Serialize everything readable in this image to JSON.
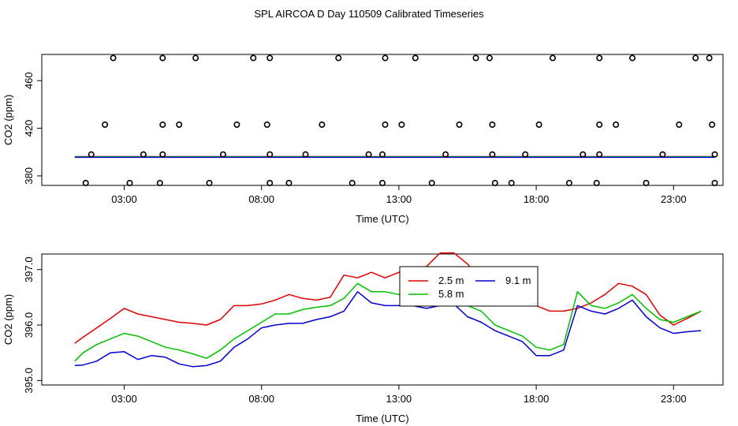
{
  "figure": {
    "title": "SPL AIRCOA D  Day 110509  Calibrated Timeseries"
  },
  "colors": {
    "red": "#e00000",
    "green": "#00c000",
    "blue": "#0000d0",
    "cyan": "#00b0b0",
    "magenta": "#c000c0",
    "axis": "#000000"
  },
  "chart_data": [
    {
      "type": "scatter+line",
      "panel": "top",
      "title": "",
      "xlabel": "Time (UTC)",
      "ylabel": "CO2 (ppm)",
      "xlim": [
        0,
        24.8
      ],
      "ylim": [
        372,
        482
      ],
      "x_ticks": [
        3,
        8,
        13,
        18,
        23
      ],
      "x_tick_labels": [
        "03:00",
        "08:00",
        "13:00",
        "18:00",
        "23:00"
      ],
      "y_ticks": [
        380,
        420,
        460
      ],
      "y_tick_labels": [
        "380",
        "420",
        "460"
      ],
      "calibration_points": [
        [
          1.6,
          374
        ],
        [
          1.8,
          398
        ],
        [
          2.3,
          423
        ],
        [
          2.6,
          479
        ],
        [
          3.2,
          374
        ],
        [
          3.7,
          398
        ],
        [
          4.3,
          374
        ],
        [
          4.4,
          398
        ],
        [
          4.4,
          423
        ],
        [
          4.4,
          479
        ],
        [
          5.0,
          423
        ],
        [
          5.6,
          479
        ],
        [
          6.1,
          374
        ],
        [
          6.6,
          398
        ],
        [
          7.1,
          423
        ],
        [
          7.7,
          479
        ],
        [
          8.2,
          423
        ],
        [
          8.3,
          479
        ],
        [
          8.3,
          398
        ],
        [
          8.3,
          374
        ],
        [
          9.0,
          374
        ],
        [
          9.6,
          398
        ],
        [
          10.2,
          423
        ],
        [
          10.8,
          479
        ],
        [
          11.3,
          374
        ],
        [
          11.9,
          398
        ],
        [
          12.4,
          374
        ],
        [
          12.4,
          398
        ],
        [
          12.5,
          423
        ],
        [
          12.5,
          479
        ],
        [
          13.1,
          423
        ],
        [
          13.6,
          479
        ],
        [
          14.2,
          374
        ],
        [
          14.7,
          398
        ],
        [
          15.2,
          423
        ],
        [
          15.8,
          479
        ],
        [
          16.3,
          479
        ],
        [
          16.4,
          423
        ],
        [
          16.4,
          398
        ],
        [
          16.5,
          374
        ],
        [
          17.1,
          374
        ],
        [
          17.6,
          398
        ],
        [
          18.1,
          423
        ],
        [
          18.6,
          479
        ],
        [
          19.2,
          374
        ],
        [
          19.7,
          398
        ],
        [
          20.2,
          374
        ],
        [
          20.3,
          398
        ],
        [
          20.3,
          423
        ],
        [
          20.3,
          479
        ],
        [
          20.9,
          423
        ],
        [
          21.5,
          479
        ],
        [
          22.0,
          374
        ],
        [
          22.6,
          398
        ],
        [
          23.2,
          423
        ],
        [
          23.8,
          479
        ],
        [
          24.3,
          479
        ],
        [
          24.4,
          423
        ],
        [
          24.5,
          398
        ],
        [
          24.5,
          374
        ]
      ],
      "series": [
        {
          "name": "2.5 m",
          "color": "#e00000",
          "x": [
            1.2,
            24.5
          ],
          "y": [
            396.2,
            396.2
          ]
        },
        {
          "name": "5.8 m",
          "color": "#00c000",
          "x": [
            1.2,
            24.5
          ],
          "y": [
            396.0,
            396.0
          ]
        },
        {
          "name": "9.1 m",
          "color": "#0000d0",
          "x": [
            1.2,
            24.5
          ],
          "y": [
            395.6,
            395.6
          ]
        }
      ]
    },
    {
      "type": "line",
      "panel": "bottom",
      "title": "",
      "xlabel": "Time (UTC)",
      "ylabel": "CO2 (ppm)",
      "xlim": [
        0,
        24.8
      ],
      "ylim": [
        394.92,
        397.28
      ],
      "x_ticks": [
        3,
        8,
        13,
        18,
        23
      ],
      "x_tick_labels": [
        "03:00",
        "08:00",
        "13:00",
        "18:00",
        "23:00"
      ],
      "y_ticks": [
        395.0,
        396.0,
        397.0
      ],
      "y_tick_labels": [
        "395.0",
        "396.0",
        "397.0"
      ],
      "legend": {
        "position": "top-center",
        "entries": [
          {
            "label": "2.5 m",
            "color": "#e00000"
          },
          {
            "label": "9.1 m",
            "color": "#0000d0"
          },
          {
            "label": "5.8 m",
            "color": "#00c000"
          }
        ]
      },
      "series": [
        {
          "name": "2.5 m",
          "color": "#e00000",
          "x": [
            1.2,
            1.5,
            2.0,
            2.5,
            3.0,
            3.5,
            4.0,
            4.5,
            5.0,
            5.5,
            6.0,
            6.5,
            7.0,
            7.5,
            8.0,
            8.5,
            9.0,
            9.5,
            10.0,
            10.5,
            11.0,
            11.5,
            12.0,
            12.5,
            13.0,
            13.5,
            14.0,
            14.5,
            15.0,
            15.5,
            16.0,
            16.5,
            17.0,
            17.5,
            18.0,
            18.5,
            19.0,
            19.5,
            20.0,
            20.5,
            21.0,
            21.5,
            22.0,
            22.5,
            23.0,
            23.5,
            24.0
          ],
          "y": [
            395.67,
            395.78,
            395.95,
            396.12,
            396.3,
            396.2,
            396.15,
            396.1,
            396.05,
            396.03,
            396.0,
            396.1,
            396.35,
            396.35,
            396.38,
            396.45,
            396.55,
            396.48,
            396.45,
            396.5,
            396.9,
            396.85,
            396.95,
            396.85,
            396.95,
            397.0,
            397.05,
            397.3,
            397.3,
            397.1,
            396.8,
            396.55,
            396.5,
            396.5,
            396.35,
            396.25,
            396.25,
            396.3,
            396.4,
            396.55,
            396.75,
            396.7,
            396.55,
            396.18,
            396.0,
            396.12,
            396.25
          ]
        },
        {
          "name": "5.8 m",
          "color": "#00c000",
          "x": [
            1.2,
            1.5,
            2.0,
            2.5,
            3.0,
            3.5,
            4.0,
            4.5,
            5.0,
            5.5,
            6.0,
            6.5,
            7.0,
            7.5,
            8.0,
            8.5,
            9.0,
            9.5,
            10.0,
            10.5,
            11.0,
            11.5,
            12.0,
            12.5,
            13.0,
            13.5,
            14.0,
            14.5,
            15.0,
            15.5,
            16.0,
            16.5,
            17.0,
            17.5,
            18.0,
            18.5,
            19.0,
            19.5,
            20.0,
            20.5,
            21.0,
            21.5,
            22.0,
            22.5,
            23.0,
            23.5,
            24.0
          ],
          "y": [
            395.35,
            395.5,
            395.65,
            395.75,
            395.85,
            395.8,
            395.7,
            395.6,
            395.55,
            395.48,
            395.4,
            395.55,
            395.75,
            395.9,
            396.05,
            396.2,
            396.2,
            396.28,
            396.32,
            396.35,
            396.48,
            396.75,
            396.6,
            396.6,
            396.55,
            396.45,
            396.45,
            396.55,
            396.6,
            396.35,
            396.25,
            396.0,
            395.9,
            395.8,
            395.6,
            395.55,
            395.65,
            396.6,
            396.35,
            396.3,
            396.4,
            396.55,
            396.3,
            396.1,
            396.05,
            396.15,
            396.25
          ]
        },
        {
          "name": "9.1 m",
          "color": "#0000d0",
          "x": [
            1.2,
            1.5,
            2.0,
            2.5,
            3.0,
            3.5,
            4.0,
            4.5,
            5.0,
            5.5,
            6.0,
            6.5,
            7.0,
            7.5,
            8.0,
            8.5,
            9.0,
            9.5,
            10.0,
            10.5,
            11.0,
            11.5,
            12.0,
            12.5,
            13.0,
            13.5,
            14.0,
            14.5,
            15.0,
            15.5,
            16.0,
            16.5,
            17.0,
            17.5,
            18.0,
            18.5,
            19.0,
            19.5,
            20.0,
            20.5,
            21.0,
            21.5,
            22.0,
            22.5,
            23.0,
            23.5,
            24.0
          ],
          "y": [
            395.27,
            395.28,
            395.35,
            395.5,
            395.52,
            395.38,
            395.45,
            395.42,
            395.3,
            395.25,
            395.27,
            395.35,
            395.6,
            395.75,
            395.95,
            396.0,
            396.03,
            396.03,
            396.1,
            396.15,
            396.25,
            396.6,
            396.4,
            396.35,
            396.35,
            396.35,
            396.3,
            396.35,
            396.38,
            396.15,
            396.05,
            395.9,
            395.8,
            395.7,
            395.45,
            395.45,
            395.55,
            396.35,
            396.25,
            396.2,
            396.3,
            396.45,
            396.15,
            395.95,
            395.85,
            395.88,
            395.9
          ]
        }
      ]
    }
  ]
}
